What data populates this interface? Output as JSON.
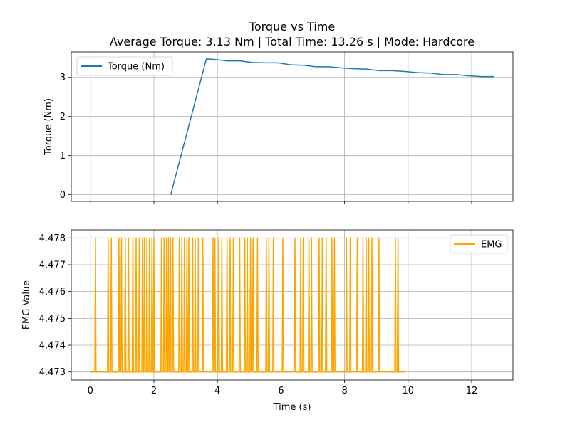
{
  "title": "Torque vs Time",
  "subtitle": "Average Torque: 3.13 Nm | Total Time: 13.26 s | Mode: Hardcore",
  "chart_data": [
    {
      "type": "line",
      "ylabel": "Torque (Nm)",
      "xlabel": "",
      "xlim": [
        -0.6,
        13.3
      ],
      "ylim": [
        -0.17,
        3.65
      ],
      "xticks": [
        0,
        2,
        4,
        6,
        8,
        10,
        12
      ],
      "xtick_labels_shown": false,
      "yticks": [
        0,
        1,
        2,
        3
      ],
      "grid": true,
      "legend_position": "upper-left",
      "series": [
        {
          "name": "Torque (Nm)",
          "color": "#1f77b4",
          "x": [
            2.53,
            3.65,
            3.9,
            4.3,
            4.7,
            5.1,
            5.5,
            5.9,
            6.3,
            6.7,
            7.1,
            7.5,
            7.9,
            8.3,
            8.7,
            9.1,
            9.5,
            9.9,
            10.3,
            10.7,
            11.1,
            11.5,
            11.9,
            12.3,
            12.72
          ],
          "y": [
            0,
            3.47,
            3.46,
            3.42,
            3.42,
            3.38,
            3.37,
            3.37,
            3.32,
            3.31,
            3.27,
            3.27,
            3.24,
            3.22,
            3.21,
            3.17,
            3.17,
            3.15,
            3.12,
            3.11,
            3.07,
            3.07,
            3.04,
            3.02,
            3.02
          ]
        }
      ]
    },
    {
      "type": "line",
      "ylabel": "EMG Value",
      "xlabel": "Time (s)",
      "xlim": [
        -0.6,
        13.3
      ],
      "ylim": [
        4.4727,
        4.4783
      ],
      "xticks": [
        0,
        2,
        4,
        6,
        8,
        10,
        12
      ],
      "yticks": [
        4.473,
        4.474,
        4.475,
        4.476,
        4.477,
        4.478
      ],
      "grid": true,
      "legend_position": "upper-right",
      "series": [
        {
          "name": "EMG",
          "color": "#ffa500",
          "baseline": 4.473,
          "high": 4.478,
          "x_start": 0,
          "x_end": 9.9,
          "spike_times": [
            0.16,
            0.56,
            0.66,
            0.9,
            0.98,
            1.1,
            1.2,
            1.34,
            1.44,
            1.54,
            1.64,
            1.7,
            1.78,
            1.86,
            1.94,
            2.0,
            2.24,
            2.32,
            2.4,
            2.46,
            2.52,
            2.6,
            2.8,
            2.88,
            2.96,
            3.04,
            3.1,
            3.22,
            3.3,
            3.4,
            3.54,
            3.86,
            3.92,
            4.04,
            4.14,
            4.3,
            4.4,
            4.5,
            4.7,
            4.86,
            4.94,
            5.04,
            5.12,
            5.26,
            5.54,
            5.62,
            5.76,
            6.06,
            6.44,
            6.62,
            6.7,
            6.88,
            6.96,
            7.2,
            7.3,
            7.42,
            7.6,
            7.68,
            8.06,
            8.18,
            8.4,
            8.58,
            8.68,
            8.76,
            8.86,
            9.08,
            9.6,
            9.68
          ]
        }
      ]
    }
  ]
}
